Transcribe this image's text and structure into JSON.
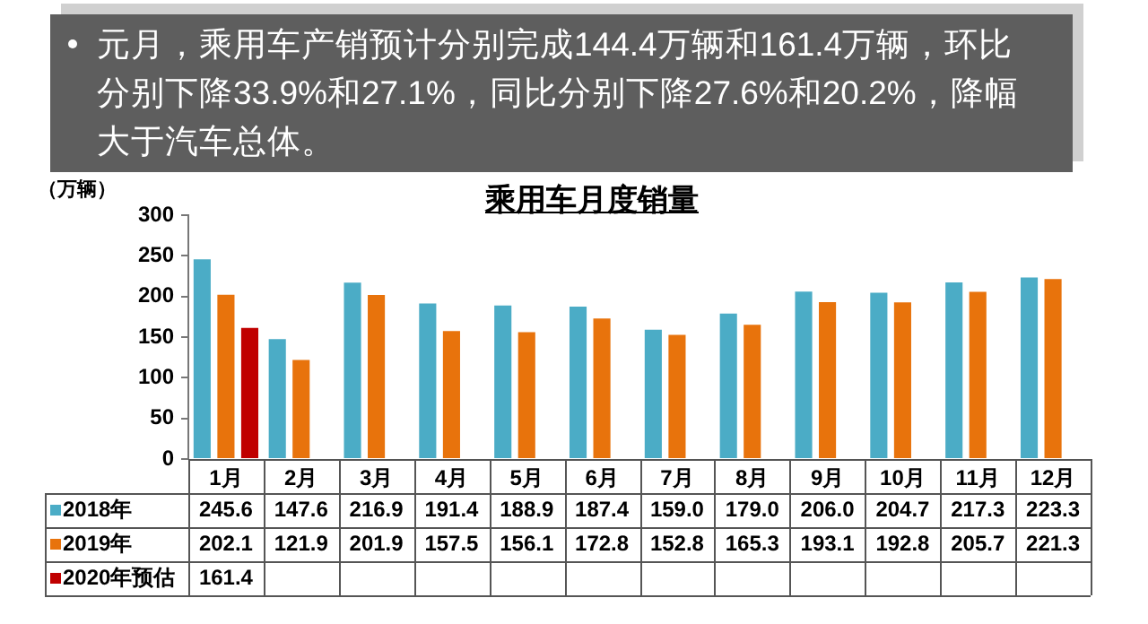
{
  "chart_data": {
    "type": "bar",
    "title": "乘用车月度销量",
    "subtitle": "元月，乘用车产销预计分别完成144.4万辆和161.4万辆，环比分别下降33.9%和27.1%，同比分别下降27.6%和20.2%，降幅大于汽车总体。",
    "ylabel": "（万辆）",
    "categories": [
      "1月",
      "2月",
      "3月",
      "4月",
      "5月",
      "6月",
      "7月",
      "8月",
      "9月",
      "10月",
      "11月",
      "12月"
    ],
    "series": [
      {
        "name": "2018年",
        "color": "#4bacc6",
        "values": [
          245.6,
          147.6,
          216.9,
          191.4,
          188.9,
          187.4,
          159.0,
          179.0,
          206.0,
          204.7,
          217.3,
          223.3
        ],
        "value_labels": [
          "245.6",
          "147.6",
          "216.9",
          "191.4",
          "188.9",
          "187.4",
          "159.0",
          "179.0",
          "206.0",
          "204.7",
          "217.3",
          "223.3"
        ]
      },
      {
        "name": "2019年",
        "color": "#e8730c",
        "values": [
          202.1,
          121.9,
          201.9,
          157.5,
          156.1,
          172.8,
          152.8,
          165.3,
          193.1,
          192.8,
          205.7,
          221.3
        ],
        "value_labels": [
          "202.1",
          "121.9",
          "201.9",
          "157.5",
          "156.1",
          "172.8",
          "152.8",
          "165.3",
          "193.1",
          "192.8",
          "205.7",
          "221.3"
        ]
      },
      {
        "name": "2020年预估",
        "color": "#c00000",
        "values": [
          161.4,
          null,
          null,
          null,
          null,
          null,
          null,
          null,
          null,
          null,
          null,
          null
        ],
        "value_labels": [
          "161.4",
          null,
          null,
          null,
          null,
          null,
          null,
          null,
          null,
          null,
          null,
          null
        ]
      }
    ],
    "ylim": [
      0,
      300
    ],
    "yticks": [
      0,
      50,
      100,
      150,
      200,
      250,
      300
    ],
    "grid": false,
    "legend": "bottom left"
  }
}
